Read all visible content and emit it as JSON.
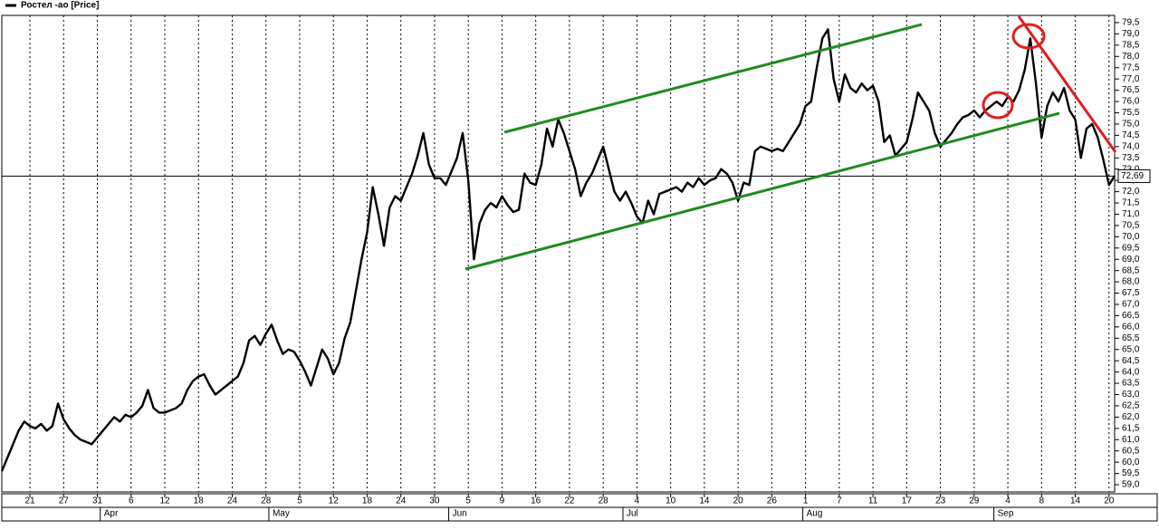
{
  "chart_data": {
    "type": "line",
    "series": [
      {
        "name": "Ростел -ао [Price]",
        "color": "#000000",
        "values": [
          59.6,
          60.2,
          60.8,
          61.4,
          61.8,
          61.6,
          61.5,
          61.7,
          61.4,
          61.6,
          62.6,
          61.9,
          61.5,
          61.2,
          61.0,
          60.9,
          60.8,
          61.1,
          61.4,
          61.7,
          62.0,
          61.8,
          62.1,
          62.0,
          62.2,
          62.5,
          63.2,
          62.4,
          62.2,
          62.2,
          62.3,
          62.4,
          62.6,
          63.2,
          63.6,
          63.8,
          63.9,
          63.4,
          63.0,
          63.2,
          63.4,
          63.6,
          63.8,
          64.4,
          65.4,
          65.6,
          65.2,
          65.7,
          66.1,
          65.4,
          64.8,
          65.0,
          64.9,
          64.5,
          64.0,
          63.4,
          64.2,
          65.0,
          64.6,
          63.9,
          64.4,
          65.5,
          66.2,
          67.6,
          69.0,
          70.2,
          72.2,
          71.0,
          69.6,
          71.3,
          71.8,
          71.6,
          72.2,
          72.8,
          73.6,
          74.6,
          73.2,
          72.6,
          72.6,
          72.3,
          72.9,
          73.5,
          74.6,
          72.5,
          69.0,
          70.6,
          71.2,
          71.5,
          71.3,
          71.8,
          71.4,
          71.1,
          71.2,
          72.8,
          72.4,
          72.3,
          73.2,
          74.8,
          74.0,
          75.2,
          74.6,
          73.8,
          73.0,
          71.8,
          72.4,
          72.8,
          73.4,
          74.0,
          73.0,
          72.0,
          71.6,
          72.0,
          71.5,
          70.9,
          70.6,
          71.6,
          71.0,
          71.9,
          72.0,
          72.1,
          72.2,
          72.0,
          72.4,
          72.2,
          72.6,
          72.3,
          72.5,
          72.6,
          73.0,
          72.8,
          72.4,
          71.6,
          72.4,
          72.3,
          73.8,
          74.0,
          73.9,
          73.8,
          73.9,
          73.8,
          74.2,
          74.6,
          75.0,
          75.8,
          76.0,
          77.5,
          78.8,
          79.2,
          77.0,
          76.0,
          77.2,
          76.6,
          76.4,
          76.8,
          76.5,
          76.7,
          76.0,
          74.2,
          74.5,
          73.6,
          73.9,
          74.2,
          75.2,
          76.4,
          76.0,
          75.6,
          74.6,
          74.0,
          74.3,
          74.6,
          75.0,
          75.3,
          75.4,
          75.6,
          75.3,
          75.6,
          75.8,
          76.0,
          75.8,
          76.2,
          76.0,
          76.5,
          77.4,
          78.8,
          76.8,
          74.4,
          75.8,
          76.4,
          76.0,
          76.6,
          75.6,
          75.2,
          73.5,
          74.8,
          75.0,
          74.4,
          73.4,
          72.3,
          72.7
        ]
      }
    ],
    "categories": [
      null,
      null,
      null,
      null,
      null,
      "21",
      null,
      null,
      null,
      null,
      null,
      "27",
      null,
      null,
      null,
      null,
      null,
      "31",
      null,
      null,
      null,
      null,
      null,
      "6",
      null,
      null,
      null,
      null,
      null,
      "12",
      null,
      null,
      null,
      null,
      null,
      "18",
      null,
      null,
      null,
      null,
      null,
      "24",
      null,
      null,
      null,
      null,
      null,
      "28",
      null,
      null,
      null,
      null,
      null,
      "5",
      null,
      null,
      null,
      null,
      null,
      "12",
      null,
      null,
      null,
      null,
      null,
      "18",
      null,
      null,
      null,
      null,
      null,
      "24",
      null,
      null,
      null,
      null,
      null,
      "30",
      null,
      null,
      null,
      null,
      null,
      "5",
      null,
      null,
      null,
      null,
      null,
      "9",
      null,
      null,
      null,
      null,
      null,
      "16",
      null,
      null,
      null,
      null,
      null,
      "22",
      null,
      null,
      null,
      null,
      null,
      "28",
      null,
      null,
      null,
      null,
      null,
      "4",
      null,
      null,
      null,
      null,
      null,
      "10",
      null,
      null,
      null,
      null,
      null,
      "14",
      null,
      null,
      null,
      null,
      null,
      "20",
      null,
      null,
      null,
      null,
      null,
      "26",
      null,
      null,
      null,
      null,
      null,
      "1",
      null,
      null,
      null,
      null,
      null,
      "7",
      null,
      null,
      null,
      null,
      null,
      "11",
      null,
      null,
      null,
      null,
      null,
      "17",
      null,
      null,
      null,
      null,
      null,
      "23",
      null,
      null,
      null,
      null,
      null,
      "29",
      null,
      null,
      null,
      null,
      null,
      "4",
      null,
      null,
      null,
      null,
      null,
      "8",
      null,
      null,
      null,
      null,
      null,
      "14",
      null,
      null,
      null,
      null,
      null,
      "20",
      null
    ],
    "months": [
      null,
      null,
      null,
      null,
      null,
      null,
      null,
      null,
      null,
      null,
      null,
      null,
      null,
      null,
      null,
      null,
      null,
      null,
      "Apr",
      null,
      null,
      null,
      null,
      null,
      null,
      null,
      null,
      null,
      null,
      null,
      null,
      null,
      null,
      null,
      null,
      null,
      null,
      null,
      null,
      null,
      null,
      null,
      null,
      null,
      null,
      null,
      null,
      null,
      "May",
      null,
      null,
      null,
      null,
      null,
      null,
      null,
      null,
      null,
      null,
      null,
      null,
      null,
      null,
      null,
      null,
      null,
      null,
      null,
      null,
      null,
      null,
      null,
      null,
      null,
      null,
      null,
      null,
      null,
      null,
      null,
      "Jun",
      null,
      null,
      null,
      null,
      null,
      null,
      null,
      null,
      null,
      null,
      null,
      null,
      null,
      null,
      null,
      null,
      null,
      null,
      null,
      null,
      null,
      null,
      null,
      null,
      null,
      null,
      null,
      null,
      null,
      null,
      "Jul",
      null,
      null,
      null,
      null,
      null,
      null,
      null,
      null,
      null,
      null,
      null,
      null,
      null,
      null,
      null,
      null,
      null,
      null,
      null,
      null,
      null,
      null,
      null,
      null,
      null,
      null,
      null,
      null,
      null,
      null,
      null,
      "Aug",
      null,
      null,
      null,
      null,
      null,
      null,
      null,
      null,
      null,
      null,
      null,
      null,
      null,
      null,
      null,
      null,
      null,
      null,
      null,
      null,
      null,
      null,
      null,
      null,
      null,
      null,
      null,
      null,
      null,
      null,
      null,
      null,
      null,
      "Sep",
      null,
      null,
      null,
      null,
      null,
      null,
      null,
      null,
      null,
      null,
      null,
      null,
      null,
      null,
      null,
      null,
      null,
      null,
      null,
      null,
      null
    ],
    "ylim": [
      58.68,
      79.82
    ],
    "yticks": [
      {
        "value": 79.5,
        "label": "79,5"
      },
      {
        "value": 79,
        "label": "79,0"
      },
      {
        "value": 78.5,
        "label": "78,5"
      },
      {
        "value": 78,
        "label": "78,0"
      },
      {
        "value": 77.5,
        "label": "77,5"
      },
      {
        "value": 77,
        "label": "77,0"
      },
      {
        "value": 76.5,
        "label": "76,5"
      },
      {
        "value": 76,
        "label": "76,0"
      },
      {
        "value": 75.5,
        "label": "75,5"
      },
      {
        "value": 75,
        "label": "75,0"
      },
      {
        "value": 74.5,
        "label": "74,5"
      },
      {
        "value": 74,
        "label": "74,0"
      },
      {
        "value": 73.5,
        "label": "73,5"
      },
      {
        "value": 73,
        "label": "73,0"
      },
      {
        "value": 72.5,
        "label": "72,5"
      },
      {
        "value": 72,
        "label": "72,0"
      },
      {
        "value": 71.5,
        "label": "71,5"
      },
      {
        "value": 71,
        "label": "71,0"
      },
      {
        "value": 70.5,
        "label": "70,5"
      },
      {
        "value": 70,
        "label": "70,0"
      },
      {
        "value": 69.5,
        "label": "69,5"
      },
      {
        "value": 69,
        "label": "69,0"
      },
      {
        "value": 68.5,
        "label": "68,5"
      },
      {
        "value": 68,
        "label": "68,0"
      },
      {
        "value": 67.5,
        "label": "67,5"
      },
      {
        "value": 67,
        "label": "67,0"
      },
      {
        "value": 66.5,
        "label": "66,5"
      },
      {
        "value": 66,
        "label": "66,0"
      },
      {
        "value": 65.5,
        "label": "65,5"
      },
      {
        "value": 65,
        "label": "65,0"
      },
      {
        "value": 64.5,
        "label": "64,5"
      },
      {
        "value": 64,
        "label": "64,0"
      },
      {
        "value": 63.5,
        "label": "63,5"
      },
      {
        "value": 63,
        "label": "63,0"
      },
      {
        "value": 62.5,
        "label": "62,5"
      },
      {
        "value": 62,
        "label": "62,0"
      },
      {
        "value": 61.5,
        "label": "61,5"
      },
      {
        "value": 61,
        "label": "61,0"
      },
      {
        "value": 60.5,
        "label": "60,5"
      },
      {
        "value": 60,
        "label": "60,0"
      },
      {
        "value": 59.5,
        "label": "59,5"
      },
      {
        "value": 59,
        "label": "59,0"
      }
    ],
    "last_value": {
      "value": 72.69,
      "label": "72,69"
    },
    "grid": true
  }
}
